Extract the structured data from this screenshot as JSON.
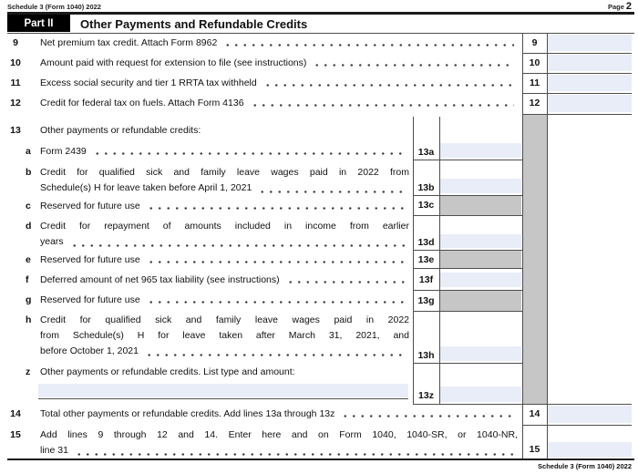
{
  "header": {
    "form_id": "Schedule 3 (Form 1040) 2022",
    "page_label": "Page",
    "page_number": "2"
  },
  "part": {
    "label": "Part II",
    "title": "Other Payments and Refundable Credits"
  },
  "colors": {
    "field_blue": "#e9edf8",
    "reserved_gray": "#c6c6c6",
    "line": "#4d4d4d"
  },
  "rows": [
    {
      "id": "9",
      "num": "9",
      "letter": "",
      "lines": [
        "Net premium tax credit. Attach Form 8962"
      ],
      "leader": true,
      "box": "9",
      "field": "input"
    },
    {
      "id": "10",
      "num": "10",
      "letter": "",
      "lines": [
        "Amount paid with request for extension to file (see instructions)"
      ],
      "leader": true,
      "box": "10",
      "field": "input"
    },
    {
      "id": "11",
      "num": "11",
      "letter": "",
      "lines": [
        "Excess social security and tier 1 RRTA tax withheld"
      ],
      "leader": true,
      "box": "11",
      "field": "input"
    },
    {
      "id": "12",
      "num": "12",
      "letter": "",
      "lines": [
        "Credit for federal tax on fuels. Attach Form 4136"
      ],
      "leader": true,
      "box": "12",
      "field": "input"
    },
    {
      "id": "13",
      "num": "13",
      "letter": "",
      "lines": [
        "Other payments or refundable credits:"
      ],
      "leader": false,
      "box": "",
      "field": "none"
    },
    {
      "id": "13a",
      "num": "",
      "letter": "a",
      "lines": [
        "Form 2439"
      ],
      "leader": true,
      "box": "13a",
      "field": "input"
    },
    {
      "id": "13b",
      "num": "",
      "letter": "b",
      "lines": [
        "Credit for qualified sick and family leave wages paid in 2022 from",
        "Schedule(s) H for leave taken before April 1, 2021"
      ],
      "leader": true,
      "box": "13b",
      "field": "input"
    },
    {
      "id": "13c",
      "num": "",
      "letter": "c",
      "lines": [
        "Reserved for future use"
      ],
      "leader": true,
      "box": "13c",
      "field": "reserved"
    },
    {
      "id": "13d",
      "num": "",
      "letter": "d",
      "lines": [
        "Credit for repayment of amounts included in income from earlier",
        "years"
      ],
      "leader": true,
      "box": "13d",
      "field": "input"
    },
    {
      "id": "13e",
      "num": "",
      "letter": "e",
      "lines": [
        "Reserved for future use"
      ],
      "leader": true,
      "box": "13e",
      "field": "reserved"
    },
    {
      "id": "13f",
      "num": "",
      "letter": "f",
      "lines": [
        "Deferred amount of net 965 tax liability (see instructions)"
      ],
      "leader": true,
      "box": "13f",
      "field": "input"
    },
    {
      "id": "13g",
      "num": "",
      "letter": "g",
      "lines": [
        "Reserved for future use"
      ],
      "leader": true,
      "box": "13g",
      "field": "reserved"
    },
    {
      "id": "13h",
      "num": "",
      "letter": "h",
      "lines": [
        "Credit for qualified sick and family leave wages paid in 2022",
        "from Schedule(s) H for leave taken after March 31, 2021, and",
        "before October 1, 2021"
      ],
      "leader": true,
      "box": "13h",
      "field": "input"
    },
    {
      "id": "13z",
      "num": "",
      "letter": "z",
      "lines": [
        "Other payments or refundable credits. List type and amount:"
      ],
      "leader": false,
      "box": "13z",
      "field": "input",
      "writein": true
    },
    {
      "id": "14",
      "num": "14",
      "letter": "",
      "lines": [
        "Total other payments or refundable credits. Add lines 13a through 13z"
      ],
      "leader": true,
      "box": "14",
      "field": "input"
    },
    {
      "id": "15",
      "num": "15",
      "letter": "",
      "lines": [
        "Add lines 9 through 12 and 14. Enter here and on Form 1040, 1040-SR, or 1040-NR,",
        "line 31"
      ],
      "leader": true,
      "box": "15",
      "field": "input"
    }
  ],
  "footer": {
    "form_id": "Schedule 3 (Form 1040) 2022"
  }
}
